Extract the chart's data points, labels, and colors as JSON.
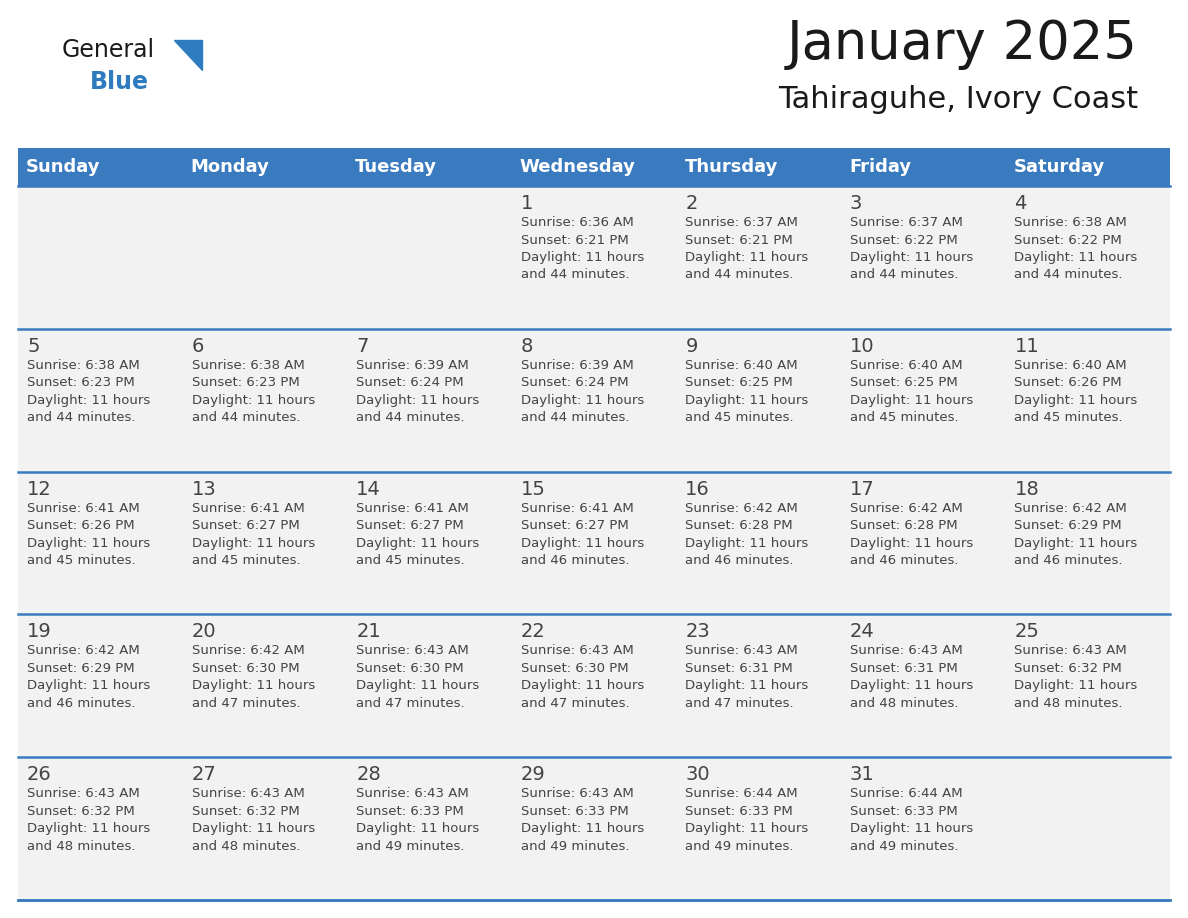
{
  "title": "January 2025",
  "subtitle": "Tahiraguhe, Ivory Coast",
  "days_of_week": [
    "Sunday",
    "Monday",
    "Tuesday",
    "Wednesday",
    "Thursday",
    "Friday",
    "Saturday"
  ],
  "header_bg": "#3a7abf",
  "header_text": "#ffffff",
  "cell_bg": "#f2f2f2",
  "cell_bg_white": "#ffffff",
  "row_line_color": "#3a7abf",
  "text_color": "#444444",
  "calendar": [
    [
      {
        "day": null,
        "info": null
      },
      {
        "day": null,
        "info": null
      },
      {
        "day": null,
        "info": null
      },
      {
        "day": 1,
        "info": "Sunrise: 6:36 AM\nSunset: 6:21 PM\nDaylight: 11 hours\nand 44 minutes."
      },
      {
        "day": 2,
        "info": "Sunrise: 6:37 AM\nSunset: 6:21 PM\nDaylight: 11 hours\nand 44 minutes."
      },
      {
        "day": 3,
        "info": "Sunrise: 6:37 AM\nSunset: 6:22 PM\nDaylight: 11 hours\nand 44 minutes."
      },
      {
        "day": 4,
        "info": "Sunrise: 6:38 AM\nSunset: 6:22 PM\nDaylight: 11 hours\nand 44 minutes."
      }
    ],
    [
      {
        "day": 5,
        "info": "Sunrise: 6:38 AM\nSunset: 6:23 PM\nDaylight: 11 hours\nand 44 minutes."
      },
      {
        "day": 6,
        "info": "Sunrise: 6:38 AM\nSunset: 6:23 PM\nDaylight: 11 hours\nand 44 minutes."
      },
      {
        "day": 7,
        "info": "Sunrise: 6:39 AM\nSunset: 6:24 PM\nDaylight: 11 hours\nand 44 minutes."
      },
      {
        "day": 8,
        "info": "Sunrise: 6:39 AM\nSunset: 6:24 PM\nDaylight: 11 hours\nand 44 minutes."
      },
      {
        "day": 9,
        "info": "Sunrise: 6:40 AM\nSunset: 6:25 PM\nDaylight: 11 hours\nand 45 minutes."
      },
      {
        "day": 10,
        "info": "Sunrise: 6:40 AM\nSunset: 6:25 PM\nDaylight: 11 hours\nand 45 minutes."
      },
      {
        "day": 11,
        "info": "Sunrise: 6:40 AM\nSunset: 6:26 PM\nDaylight: 11 hours\nand 45 minutes."
      }
    ],
    [
      {
        "day": 12,
        "info": "Sunrise: 6:41 AM\nSunset: 6:26 PM\nDaylight: 11 hours\nand 45 minutes."
      },
      {
        "day": 13,
        "info": "Sunrise: 6:41 AM\nSunset: 6:27 PM\nDaylight: 11 hours\nand 45 minutes."
      },
      {
        "day": 14,
        "info": "Sunrise: 6:41 AM\nSunset: 6:27 PM\nDaylight: 11 hours\nand 45 minutes."
      },
      {
        "day": 15,
        "info": "Sunrise: 6:41 AM\nSunset: 6:27 PM\nDaylight: 11 hours\nand 46 minutes."
      },
      {
        "day": 16,
        "info": "Sunrise: 6:42 AM\nSunset: 6:28 PM\nDaylight: 11 hours\nand 46 minutes."
      },
      {
        "day": 17,
        "info": "Sunrise: 6:42 AM\nSunset: 6:28 PM\nDaylight: 11 hours\nand 46 minutes."
      },
      {
        "day": 18,
        "info": "Sunrise: 6:42 AM\nSunset: 6:29 PM\nDaylight: 11 hours\nand 46 minutes."
      }
    ],
    [
      {
        "day": 19,
        "info": "Sunrise: 6:42 AM\nSunset: 6:29 PM\nDaylight: 11 hours\nand 46 minutes."
      },
      {
        "day": 20,
        "info": "Sunrise: 6:42 AM\nSunset: 6:30 PM\nDaylight: 11 hours\nand 47 minutes."
      },
      {
        "day": 21,
        "info": "Sunrise: 6:43 AM\nSunset: 6:30 PM\nDaylight: 11 hours\nand 47 minutes."
      },
      {
        "day": 22,
        "info": "Sunrise: 6:43 AM\nSunset: 6:30 PM\nDaylight: 11 hours\nand 47 minutes."
      },
      {
        "day": 23,
        "info": "Sunrise: 6:43 AM\nSunset: 6:31 PM\nDaylight: 11 hours\nand 47 minutes."
      },
      {
        "day": 24,
        "info": "Sunrise: 6:43 AM\nSunset: 6:31 PM\nDaylight: 11 hours\nand 48 minutes."
      },
      {
        "day": 25,
        "info": "Sunrise: 6:43 AM\nSunset: 6:32 PM\nDaylight: 11 hours\nand 48 minutes."
      }
    ],
    [
      {
        "day": 26,
        "info": "Sunrise: 6:43 AM\nSunset: 6:32 PM\nDaylight: 11 hours\nand 48 minutes."
      },
      {
        "day": 27,
        "info": "Sunrise: 6:43 AM\nSunset: 6:32 PM\nDaylight: 11 hours\nand 48 minutes."
      },
      {
        "day": 28,
        "info": "Sunrise: 6:43 AM\nSunset: 6:33 PM\nDaylight: 11 hours\nand 49 minutes."
      },
      {
        "day": 29,
        "info": "Sunrise: 6:43 AM\nSunset: 6:33 PM\nDaylight: 11 hours\nand 49 minutes."
      },
      {
        "day": 30,
        "info": "Sunrise: 6:44 AM\nSunset: 6:33 PM\nDaylight: 11 hours\nand 49 minutes."
      },
      {
        "day": 31,
        "info": "Sunrise: 6:44 AM\nSunset: 6:33 PM\nDaylight: 11 hours\nand 49 minutes."
      },
      {
        "day": null,
        "info": null
      }
    ]
  ],
  "logo_general_color": "#1a1a1a",
  "logo_blue_color": "#2e7bbf",
  "title_fontsize": 38,
  "subtitle_fontsize": 22,
  "header_fontsize": 13,
  "day_num_fontsize": 14,
  "info_fontsize": 9.5
}
